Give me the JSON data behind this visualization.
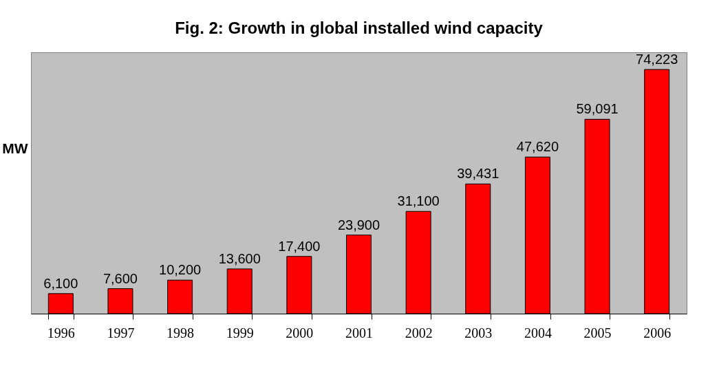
{
  "chart_data": {
    "type": "bar",
    "title": "Fig. 2: Growth in global installed wind capacity",
    "ylabel": "MW",
    "categories": [
      "1996",
      "1997",
      "1998",
      "1999",
      "2000",
      "2001",
      "2002",
      "2003",
      "2004",
      "2005",
      "2006"
    ],
    "values": [
      6100,
      7600,
      10200,
      13600,
      17400,
      23900,
      31100,
      39431,
      47620,
      59091,
      74223
    ],
    "value_labels": [
      "6,100",
      "7,600",
      "10,200",
      "13,600",
      "17,400",
      "23,900",
      "31,100",
      "39,431",
      "47,620",
      "59,091",
      "74,223"
    ],
    "color": "#ff0000",
    "grid": false,
    "tick_labels": "x"
  }
}
